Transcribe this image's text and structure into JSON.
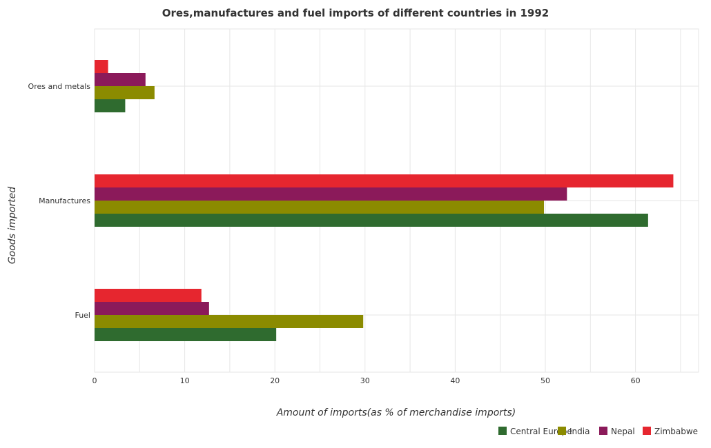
{
  "colors": {
    "Central Europe": "#2f6b2f",
    "India": "#8b8b00",
    "Nepal": "#8b1a5a",
    "Zimbabwe": "#e6262f"
  },
  "chart_data": {
    "type": "bar",
    "orientation": "horizontal",
    "title": "Ores,manufactures and fuel imports of different countries in 1992",
    "xlabel": "Amount of imports(as % of merchandise imports)",
    "ylabel": "Goods imported",
    "xlim": [
      0,
      67
    ],
    "xticks": [
      0,
      10,
      20,
      30,
      40,
      50,
      60
    ],
    "categories": [
      "Ores and metals",
      "Manufactures",
      "Fuel"
    ],
    "series": [
      {
        "name": "Central Europe",
        "values": [
          3.4,
          61.4,
          20.15
        ]
      },
      {
        "name": "India",
        "values": [
          6.65,
          49.85,
          29.8
        ]
      },
      {
        "name": "Nepal",
        "values": [
          5.65,
          52.4,
          12.7
        ]
      },
      {
        "name": "Zimbabwe",
        "values": [
          1.5,
          64.2,
          11.85
        ]
      }
    ],
    "grid": true,
    "legend_position": "bottom-right"
  }
}
